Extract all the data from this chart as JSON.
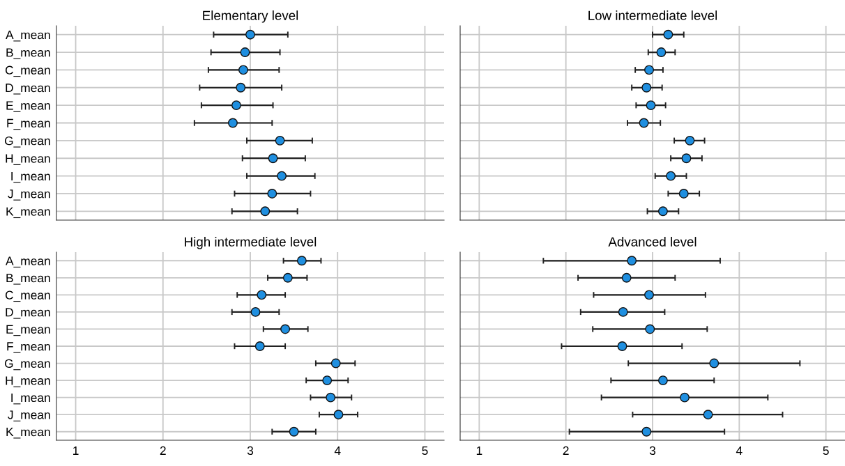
{
  "chart_data": [
    {
      "type": "scatter",
      "orientation": "horizontal",
      "title": "Elementary level",
      "categories": [
        "A_mean",
        "B_mean",
        "C_mean",
        "D_mean",
        "E_mean",
        "F_mean",
        "G_mean",
        "H_mean",
        "I_mean",
        "J_mean",
        "K_mean"
      ],
      "color": "#1f8fe0",
      "marker": "circle",
      "grid": true,
      "tick_labels": "y",
      "xlim": [
        0.78,
        5.22
      ],
      "xticks": [
        1,
        2,
        3,
        4,
        5
      ],
      "values": [
        3.0,
        2.94,
        2.92,
        2.89,
        2.84,
        2.8,
        3.34,
        3.26,
        3.36,
        3.25,
        3.17
      ],
      "errors": [
        [
          2.58,
          3.43
        ],
        [
          2.55,
          3.34
        ],
        [
          2.52,
          3.33
        ],
        [
          2.42,
          3.36
        ],
        [
          2.44,
          3.26
        ],
        [
          2.36,
          3.25
        ],
        [
          2.96,
          3.71
        ],
        [
          2.91,
          3.63
        ],
        [
          2.96,
          3.74
        ],
        [
          2.82,
          3.69
        ],
        [
          2.79,
          3.54
        ]
      ]
    },
    {
      "type": "scatter",
      "orientation": "horizontal",
      "title": "Low intermediate level",
      "categories": [
        null,
        null,
        null,
        null,
        null,
        null,
        null,
        null,
        null,
        null,
        null
      ],
      "color": "#1f8fe0",
      "marker": "circle",
      "grid": true,
      "tick_labels": false,
      "xlim": [
        0.78,
        5.22
      ],
      "xticks": [
        1,
        2,
        3,
        4,
        5
      ],
      "values": [
        3.18,
        3.1,
        2.96,
        2.93,
        2.98,
        2.9,
        3.43,
        3.39,
        3.21,
        3.36,
        3.12
      ],
      "errors": [
        [
          3.0,
          3.36
        ],
        [
          2.95,
          3.26
        ],
        [
          2.8,
          3.12
        ],
        [
          2.76,
          3.11
        ],
        [
          2.81,
          3.15
        ],
        [
          2.71,
          3.09
        ],
        [
          3.25,
          3.6
        ],
        [
          3.21,
          3.57
        ],
        [
          3.03,
          3.39
        ],
        [
          3.18,
          3.54
        ],
        [
          2.94,
          3.3
        ]
      ]
    },
    {
      "type": "scatter",
      "orientation": "horizontal",
      "title": "High intermediate level",
      "categories": [
        "A_mean",
        "B_mean",
        "C_mean",
        "D_mean",
        "E_mean",
        "F_mean",
        "G_mean",
        "H_mean",
        "I_mean",
        "J_mean",
        "K_mean"
      ],
      "color": "#1f8fe0",
      "marker": "circle",
      "grid": true,
      "xlim": [
        0.78,
        5.22
      ],
      "xticks": [
        1,
        2,
        3,
        4,
        5
      ],
      "values": [
        3.59,
        3.43,
        3.13,
        3.06,
        3.4,
        3.11,
        3.98,
        3.88,
        3.92,
        4.01,
        3.5
      ],
      "errors": [
        [
          3.38,
          3.81
        ],
        [
          3.2,
          3.65
        ],
        [
          2.85,
          3.4
        ],
        [
          2.79,
          3.33
        ],
        [
          3.15,
          3.66
        ],
        [
          2.82,
          3.4
        ],
        [
          3.75,
          4.2
        ],
        [
          3.64,
          4.12
        ],
        [
          3.69,
          4.16
        ],
        [
          3.79,
          4.23
        ],
        [
          3.25,
          3.75
        ]
      ]
    },
    {
      "type": "scatter",
      "orientation": "horizontal",
      "title": "Advanced level",
      "categories": [
        null,
        null,
        null,
        null,
        null,
        null,
        null,
        null,
        null,
        null,
        null
      ],
      "color": "#1f8fe0",
      "marker": "circle",
      "grid": true,
      "tick_labels": "x",
      "xlim": [
        0.78,
        5.22
      ],
      "xticks": [
        1,
        2,
        3,
        4,
        5
      ],
      "values": [
        2.76,
        2.7,
        2.96,
        2.66,
        2.97,
        2.65,
        3.71,
        3.12,
        3.37,
        3.64,
        2.93
      ],
      "errors": [
        [
          1.74,
          3.78
        ],
        [
          2.14,
          3.26
        ],
        [
          2.32,
          3.61
        ],
        [
          2.17,
          3.14
        ],
        [
          2.31,
          3.63
        ],
        [
          1.95,
          3.34
        ],
        [
          2.72,
          4.7
        ],
        [
          2.52,
          3.71
        ],
        [
          2.41,
          4.33
        ],
        [
          2.77,
          4.5
        ],
        [
          2.04,
          3.83
        ]
      ]
    }
  ]
}
